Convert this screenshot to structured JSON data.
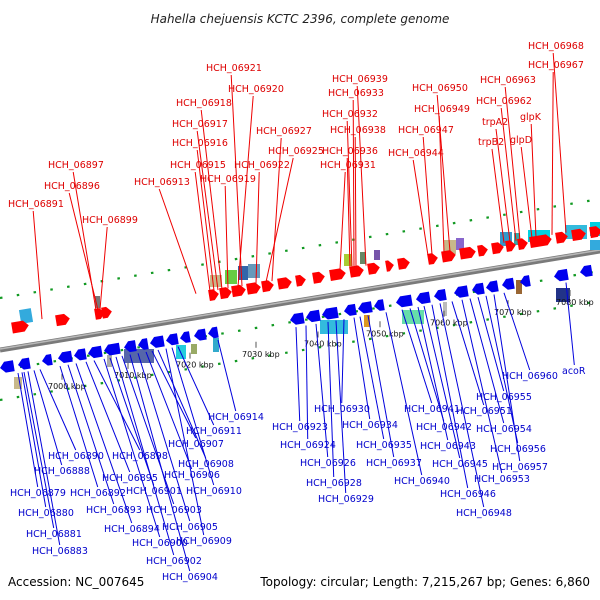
{
  "title": "Hahella chejuensis KCTC 2396, complete genome",
  "footer": {
    "accession": "Accession: NC_007645",
    "summary": "Topology: circular; Length: 7,215,267 bp; Genes: 6,860"
  },
  "colors": {
    "forward_gene": "#ff0000",
    "reverse_gene": "#0000ee",
    "forward_label": "#dd0000",
    "reverse_label": "#0000cc",
    "backbone": "#8a8a8a",
    "frame_dash": "#119922",
    "tick_mark": "#555555"
  },
  "ticks": [
    {
      "label": "7000 kbp"
    },
    {
      "label": "7010 kbp"
    },
    {
      "label": "7020 kbp"
    },
    {
      "label": "7030 kbp"
    },
    {
      "label": "7040 kbp"
    },
    {
      "label": "7050 kbp"
    },
    {
      "label": "7060 kbp"
    },
    {
      "label": "7070 kbp"
    },
    {
      "label": "7080 kbp"
    }
  ],
  "labels_top": [
    "HCH_06891",
    "HCH_06897",
    "HCH_06896",
    "HCH_06899",
    "HCH_06913",
    "HCH_06915",
    "HCH_06916",
    "HCH_06917",
    "HCH_06918",
    "HCH_06919",
    "HCH_06920",
    "HCH_06921",
    "HCH_06922",
    "HCH_06925",
    "HCH_06927",
    "HCH_06931",
    "HCH_06936",
    "HCH_06932",
    "HCH_06933",
    "HCH_06938",
    "HCH_06939",
    "HCH_06944",
    "HCH_06947",
    "HCH_06949",
    "HCH_06950",
    "trpB2",
    "trpA2",
    "HCH_06962",
    "HCH_06963",
    "glpD",
    "glpK",
    "HCH_06967",
    "HCH_06968"
  ],
  "labels_bottom": [
    "HCH_06879",
    "HCH_06880",
    "HCH_06881",
    "HCH_06883",
    "HCH_06888",
    "HCH_06890",
    "HCH_06892",
    "HCH_06893",
    "HCH_06894",
    "HCH_06895",
    "HCH_06898",
    "HCH_06900",
    "HCH_06901",
    "HCH_06902",
    "HCH_06903",
    "HCH_06904",
    "HCH_06905",
    "HCH_06906",
    "HCH_06907",
    "HCH_06908",
    "HCH_06909",
    "HCH_06910",
    "HCH_06911",
    "HCH_06914",
    "HCH_06923",
    "HCH_06924",
    "HCH_06926",
    "HCH_06928",
    "HCH_06929",
    "HCH_06930",
    "HCH_06934",
    "HCH_06935",
    "HCH_06937",
    "HCH_06940",
    "HCH_06941",
    "HCH_06942",
    "HCH_06943",
    "HCH_06945",
    "HCH_06946",
    "HCH_06948",
    "HCH_06951",
    "HCH_06953",
    "HCH_06954",
    "HCH_06955",
    "HCH_06956",
    "HCH_06957",
    "HCH_06960",
    "acoR"
  ]
}
